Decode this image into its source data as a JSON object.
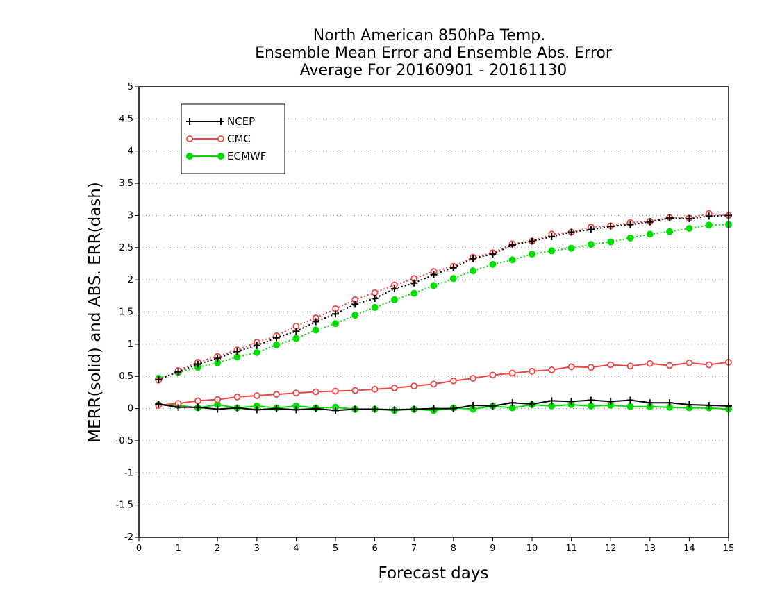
{
  "chart_data": {
    "type": "line",
    "title_lines": [
      "North American 850hPa Temp.",
      "Ensemble Mean Error and Ensemble Abs. Error",
      "Average For 20160901 - 20161130"
    ],
    "xlabel": "Forecast days",
    "ylabel": "MERR(solid) and ABS. ERR(dash)",
    "xlim": [
      0,
      15
    ],
    "ylim": [
      -2,
      5
    ],
    "xticks": [
      0,
      1,
      2,
      3,
      4,
      5,
      6,
      7,
      8,
      9,
      10,
      11,
      12,
      13,
      14,
      15
    ],
    "yticks": [
      -2,
      -1.5,
      -1,
      -0.5,
      0,
      0.5,
      1,
      1.5,
      2,
      2.5,
      3,
      3.5,
      4,
      4.5,
      5
    ],
    "grid": "horizontal dotted",
    "legend_position": "top-left",
    "x": [
      0.5,
      1,
      1.5,
      2,
      2.5,
      3,
      3.5,
      4,
      4.5,
      5,
      5.5,
      6,
      6.5,
      7,
      7.5,
      8,
      8.5,
      9,
      9.5,
      10,
      10.5,
      11,
      11.5,
      12,
      12.5,
      13,
      13.5,
      14,
      14.5,
      15
    ],
    "series": [
      {
        "name": "NCEP",
        "color": "#000000",
        "marker": "plus",
        "merr": [
          0.07,
          0.02,
          0.02,
          -0.01,
          0.01,
          -0.02,
          0.0,
          -0.02,
          0.0,
          -0.03,
          -0.01,
          -0.01,
          -0.02,
          -0.01,
          0.0,
          0.0,
          0.05,
          0.04,
          0.09,
          0.07,
          0.12,
          0.11,
          0.13,
          0.11,
          0.13,
          0.09,
          0.09,
          0.06,
          0.05,
          0.04
        ],
        "abs_err": [
          0.45,
          0.57,
          0.69,
          0.78,
          0.89,
          0.98,
          1.1,
          1.2,
          1.35,
          1.47,
          1.62,
          1.71,
          1.86,
          1.95,
          2.08,
          2.19,
          2.33,
          2.4,
          2.54,
          2.6,
          2.67,
          2.74,
          2.78,
          2.83,
          2.86,
          2.9,
          2.96,
          2.95,
          2.99,
          3.0
        ]
      },
      {
        "name": "CMC",
        "color": "#ee4444",
        "marker": "open-circle",
        "merr": [
          0.05,
          0.08,
          0.12,
          0.14,
          0.18,
          0.2,
          0.22,
          0.24,
          0.26,
          0.27,
          0.28,
          0.3,
          0.32,
          0.35,
          0.38,
          0.43,
          0.47,
          0.52,
          0.55,
          0.58,
          0.6,
          0.65,
          0.64,
          0.68,
          0.66,
          0.7,
          0.67,
          0.71,
          0.68,
          0.72
        ],
        "abs_err": [
          0.44,
          0.59,
          0.72,
          0.81,
          0.91,
          1.03,
          1.13,
          1.28,
          1.41,
          1.55,
          1.69,
          1.8,
          1.92,
          2.02,
          2.13,
          2.21,
          2.35,
          2.42,
          2.56,
          2.6,
          2.71,
          2.74,
          2.82,
          2.84,
          2.89,
          2.91,
          2.97,
          2.96,
          3.03,
          3.0
        ]
      },
      {
        "name": "ECMWF",
        "color": "#00dd00",
        "marker": "filled-circle",
        "merr": [
          0.06,
          0.05,
          0.01,
          0.06,
          0.01,
          0.04,
          0.01,
          0.04,
          0.01,
          0.02,
          -0.01,
          -0.01,
          -0.03,
          -0.01,
          -0.03,
          0.01,
          -0.01,
          0.04,
          0.01,
          0.06,
          0.04,
          0.06,
          0.04,
          0.05,
          0.03,
          0.03,
          0.02,
          0.01,
          0.01,
          -0.01
        ],
        "abs_err": [
          0.47,
          0.56,
          0.64,
          0.71,
          0.8,
          0.87,
          0.99,
          1.09,
          1.22,
          1.32,
          1.45,
          1.57,
          1.69,
          1.79,
          1.91,
          2.02,
          2.14,
          2.24,
          2.31,
          2.4,
          2.45,
          2.49,
          2.55,
          2.59,
          2.65,
          2.71,
          2.75,
          2.8,
          2.85,
          2.86
        ]
      }
    ]
  }
}
